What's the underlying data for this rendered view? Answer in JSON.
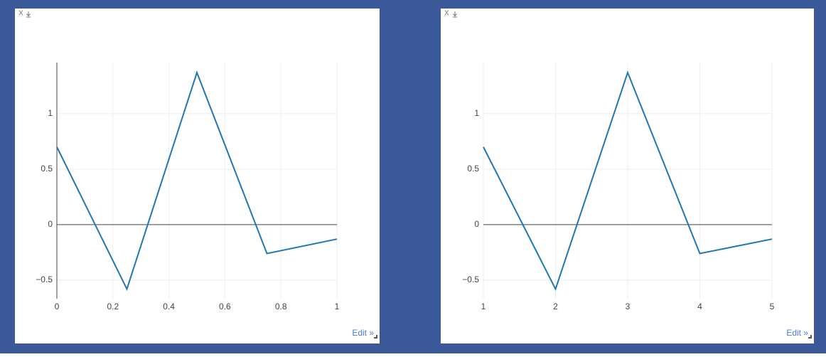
{
  "chart_data": [
    {
      "type": "line",
      "x": [
        0,
        0.25,
        0.5,
        0.75,
        1
      ],
      "series": [
        {
          "color": "#1f77b4",
          "values": [
            0.7,
            -0.58,
            1.37,
            -0.26,
            -0.13
          ]
        }
      ],
      "xlim": [
        0,
        1
      ],
      "xticks": [
        0,
        0.2,
        0.4,
        0.6,
        0.8,
        1
      ],
      "ylim": [
        -0.667,
        1.46
      ],
      "yticks": [
        {
          "value": -0.5,
          "label": "−0.5"
        },
        0,
        0.5,
        1
      ],
      "grid": true,
      "zero_line": true,
      "y_axis_line": true,
      "close_label": "X",
      "edit_label": "Edit »"
    },
    {
      "type": "line",
      "x": [
        1,
        2,
        3,
        4,
        5
      ],
      "series": [
        {
          "color": "#1f77b4",
          "values": [
            0.7,
            -0.58,
            1.37,
            -0.26,
            -0.13
          ]
        }
      ],
      "xlim": [
        1,
        5
      ],
      "xticks": [
        1,
        2,
        3,
        4,
        5
      ],
      "ylim": [
        -0.667,
        1.46
      ],
      "yticks": [
        {
          "value": -0.5,
          "label": "−0.5"
        },
        0,
        0.5,
        1
      ],
      "grid": true,
      "zero_line": true,
      "y_axis_line": false,
      "close_label": "X",
      "edit_label": "Edit »"
    }
  ]
}
